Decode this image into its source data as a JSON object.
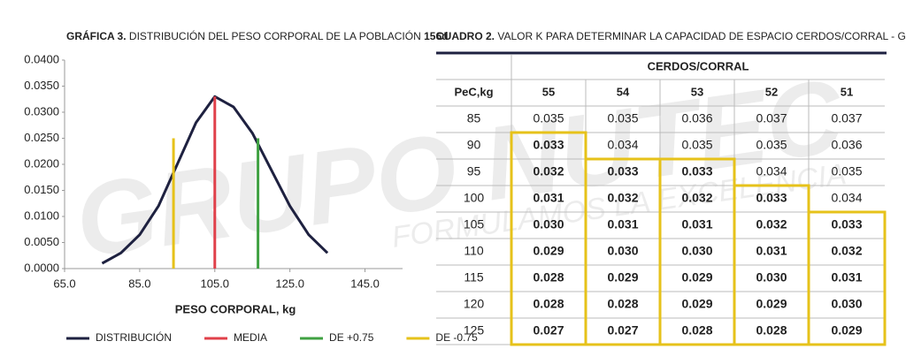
{
  "chart_data": {
    "type": "line",
    "title_parts": [
      "GRÁFICA 3.",
      " DISTRIBUCIÓN DEL PESO CORPORAL DE LA POBLACIÓN ",
      "156d"
    ],
    "xlabel": "PESO CORPORAL, kg",
    "xlim": [
      65,
      155
    ],
    "ylim": [
      0,
      0.04
    ],
    "xticks": [
      {
        "value": 65,
        "label": "65.0"
      },
      {
        "value": 85,
        "label": "85.0"
      },
      {
        "value": 105,
        "label": "105.0"
      },
      {
        "value": 125,
        "label": "125.0"
      },
      {
        "value": 145,
        "label": "145.0"
      }
    ],
    "yticks": [
      {
        "value": 0,
        "label": "0.0000"
      },
      {
        "value": 0.005,
        "label": "0.0050"
      },
      {
        "value": 0.01,
        "label": "0.0100"
      },
      {
        "value": 0.015,
        "label": "0.0150"
      },
      {
        "value": 0.02,
        "label": "0.0200"
      },
      {
        "value": 0.025,
        "label": "0.0250"
      },
      {
        "value": 0.03,
        "label": "0.0300"
      },
      {
        "value": 0.035,
        "label": "0.0350"
      },
      {
        "value": 0.04,
        "label": "0.0400"
      }
    ],
    "series": [
      {
        "name": "DISTRIBUCIÓN",
        "color": "#1e2140",
        "x": [
          75,
          80,
          85,
          90,
          95,
          100,
          105,
          110,
          115,
          120,
          125,
          130,
          135
        ],
        "values": [
          0.001,
          0.003,
          0.0065,
          0.012,
          0.02,
          0.028,
          0.033,
          0.031,
          0.026,
          0.019,
          0.012,
          0.0065,
          0.003
        ]
      },
      {
        "name": "MEDIA",
        "color": "#e0404a",
        "x": [
          105,
          105
        ],
        "values": [
          0,
          0.033
        ]
      },
      {
        "name": "DE +0.75",
        "color": "#3fa142",
        "x": [
          116.5,
          116.5
        ],
        "values": [
          0,
          0.025
        ]
      },
      {
        "name": "DE -0.75",
        "color": "#e6c21a",
        "x": [
          94,
          94
        ],
        "values": [
          0,
          0.025
        ]
      }
    ]
  },
  "watermark": [
    "GRUPO NUTEC",
    "FORMULAMOS LA EXCELENCIA"
  ],
  "table": {
    "title_parts": [
      "CUADRO 2.",
      " VALOR K PARA DETERMINAR LA CAPACIDAD DE ESPACIO CERDOS/CORRAL - GRANJA COMERCIAL"
    ],
    "group_header": "CERDOS/CORRAL",
    "row_header": "PeC,kg",
    "columns": [
      "55",
      "54",
      "53",
      "52",
      "51"
    ],
    "rows": [
      [
        "85",
        "0.035",
        "0.035",
        "0.036",
        "0.037",
        "0.037"
      ],
      [
        "90",
        "0.033",
        "0.034",
        "0.035",
        "0.035",
        "0.036"
      ],
      [
        "95",
        "0.032",
        "0.033",
        "0.033",
        "0.034",
        "0.035"
      ],
      [
        "100",
        "0.031",
        "0.032",
        "0.032",
        "0.033",
        "0.034"
      ],
      [
        "105",
        "0.030",
        "0.031",
        "0.031",
        "0.032",
        "0.033"
      ],
      [
        "110",
        "0.029",
        "0.030",
        "0.030",
        "0.031",
        "0.032"
      ],
      [
        "115",
        "0.028",
        "0.029",
        "0.029",
        "0.030",
        "0.031"
      ],
      [
        "120",
        "0.028",
        "0.028",
        "0.029",
        "0.029",
        "0.030"
      ],
      [
        "125",
        "0.027",
        "0.027",
        "0.028",
        "0.028",
        "0.029"
      ]
    ]
  }
}
